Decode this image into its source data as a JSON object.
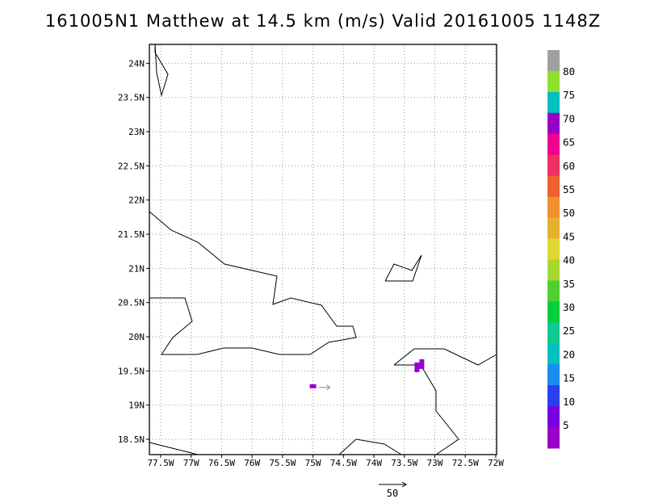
{
  "title": "161005N1 Matthew at 14.5 km (m/s) Valid 20161005 1148Z",
  "map": {
    "lon_labels": [
      "77.5W",
      "77W",
      "76.5W",
      "76W",
      "75.5W",
      "75W",
      "74.5W",
      "74W",
      "73.5W",
      "73W",
      "72.5W",
      "72W"
    ],
    "lat_labels": [
      "24N",
      "23.5N",
      "23N",
      "22.5N",
      "22N",
      "21.5N",
      "21N",
      "20.5N",
      "20N",
      "19.5N",
      "19N",
      "18.5N"
    ],
    "lon_values": [
      -77.5,
      -77,
      -76.5,
      -76,
      -75.5,
      -75,
      -74.5,
      -74,
      -73.5,
      -73,
      -72.5,
      -72
    ],
    "lat_values": [
      24,
      23.5,
      23,
      22.5,
      22,
      21.5,
      21,
      20.5,
      20,
      19.5,
      19,
      18.5
    ],
    "lon_range": [
      -77.5,
      -71.8
    ],
    "lat_range": [
      18.3,
      24.3
    ],
    "grid": "dotted",
    "wind_vectors": [
      {
        "lat": 19.26,
        "lon": -74.9,
        "u_ms": 5,
        "color": "#9a9a9a"
      }
    ],
    "shaded_cells": [
      {
        "lat": 19.27,
        "lon": -75.0,
        "speed_bin": "5",
        "color": "#9b00c9"
      },
      {
        "lat": 19.6,
        "lon": -73.2,
        "speed_bin": "5",
        "color": "#9b00c9"
      }
    ]
  },
  "reference_vector": {
    "label": "50",
    "value_ms": 50
  },
  "colorbar": {
    "labels": [
      "5",
      "10",
      "15",
      "20",
      "25",
      "30",
      "35",
      "40",
      "45",
      "50",
      "55",
      "60",
      "65",
      "70",
      "75",
      "80"
    ],
    "colors": [
      "#9b00c9",
      "#7a00e0",
      "#2a3ff0",
      "#1a8cf0",
      "#00c0c0",
      "#10c890",
      "#00d040",
      "#50d030",
      "#a8d830",
      "#e0d830",
      "#e8b030",
      "#f09030",
      "#f06030",
      "#f03060",
      "#f00090",
      "#9800c8",
      "#00c0c0",
      "#90e030",
      "#a0a0a0"
    ]
  }
}
